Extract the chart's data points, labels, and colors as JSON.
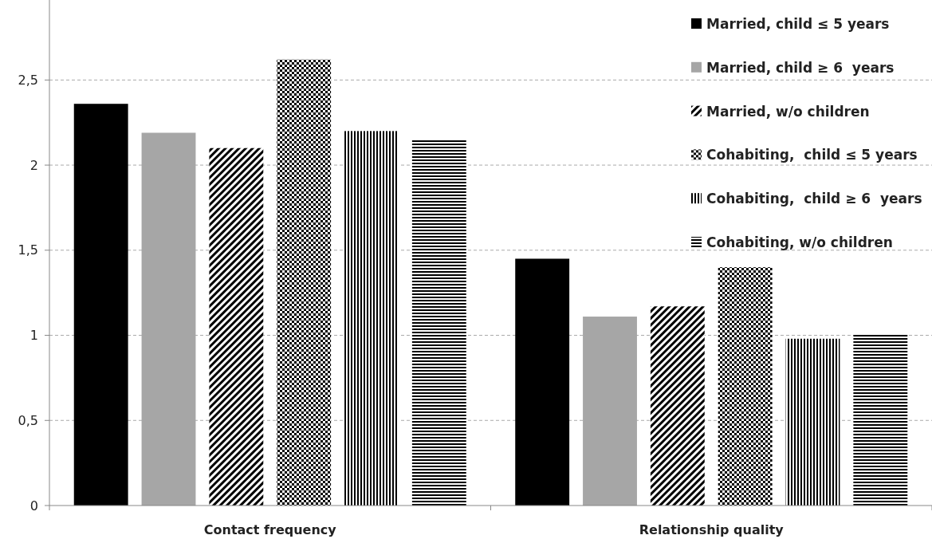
{
  "chart_data": {
    "type": "bar",
    "categories": [
      "Contact frequency",
      "Relationship quality"
    ],
    "series": [
      {
        "name": "Married, child ≤ 5 years",
        "color": "#000000",
        "values": [
          2.36,
          1.45
        ]
      },
      {
        "name": "Married, child ≥ 6  years",
        "color": "#a6a6a6",
        "values": [
          2.19,
          1.11
        ]
      },
      {
        "name": "Married, w/o children",
        "color": "#000000",
        "values": [
          2.1,
          1.17
        ]
      },
      {
        "name": "Cohabiting,  child ≤ 5 years",
        "color": "#000000",
        "values": [
          2.62,
          1.4
        ]
      },
      {
        "name": "Cohabiting,  child ≥ 6  years",
        "color": "#000000",
        "values": [
          2.2,
          0.98
        ]
      },
      {
        "name": "Cohabiting, w/o children",
        "color": "#000000",
        "values": [
          2.15,
          1.01
        ]
      }
    ],
    "ylim": [
      0,
      2.97
    ],
    "yticks": [
      0,
      {
        "value": 0.5,
        "label": "0,5"
      },
      1,
      {
        "value": 1.5,
        "label": "1,5"
      },
      2,
      {
        "value": 2.5,
        "label": "2,5"
      }
    ],
    "grid": "y",
    "legend": "top right"
  }
}
